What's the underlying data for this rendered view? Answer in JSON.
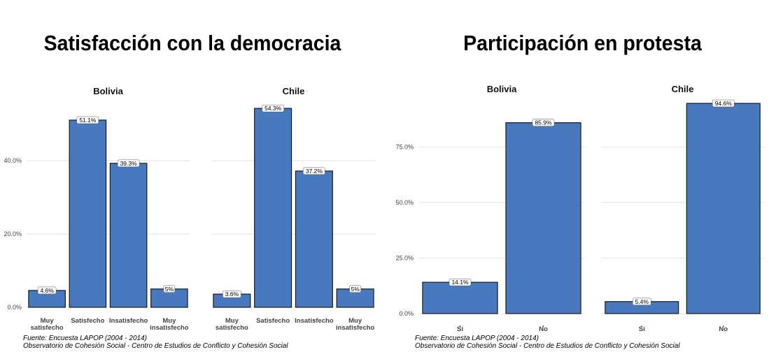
{
  "chart_data": [
    {
      "type": "bar",
      "title": "Satisfacción con la democracia",
      "categories": [
        "Muy satisfecho",
        "Satisfecho",
        "Insatisfecho",
        "Muy insatisfecho"
      ],
      "series": [
        {
          "name": "Bolivia",
          "values": [
            4.6,
            51.1,
            39.3,
            5.0
          ],
          "labels": [
            "4.6%",
            "51.1%",
            "39.3%",
            "5%"
          ]
        },
        {
          "name": "Chile",
          "values": [
            3.6,
            54.3,
            37.2,
            5.0
          ],
          "labels": [
            "3.6%",
            "54.3%",
            "37.2%",
            "5%"
          ]
        }
      ],
      "ylim": [
        0,
        57
      ],
      "yticks": [
        0,
        20,
        40
      ],
      "yticklabels": [
        "0.0%",
        "20.0%",
        "40.0%"
      ],
      "bar_color": "#4878BE",
      "grid": true,
      "caption": [
        "Fuente: Encuesta LAPOP (2004 - 2014)",
        "Observatorio de Cohesión Social - Centro de Estudios de Conflicto y Cohesión Social"
      ]
    },
    {
      "type": "bar",
      "title": "Participación en protesta",
      "categories": [
        "Sí",
        "No"
      ],
      "series": [
        {
          "name": "Bolivia",
          "values": [
            14.1,
            85.9
          ],
          "labels": [
            "14.1%",
            "85.9%"
          ]
        },
        {
          "name": "Chile",
          "values": [
            5.4,
            94.6
          ],
          "labels": [
            "5.4%",
            "94.6%"
          ]
        }
      ],
      "ylim": [
        0,
        99
      ],
      "yticks": [
        0,
        25,
        50,
        75
      ],
      "yticklabels": [
        "0.0%",
        "25.0%",
        "50.0%",
        "75.0%"
      ],
      "bar_color": "#4878BE",
      "grid": true,
      "caption": [
        "Fuente: Encuesta LAPOP (2004 - 2014)",
        "Observatorio de Cohesión Social - Centro de Estudios de Conflicto y Cohesión Social"
      ]
    }
  ]
}
